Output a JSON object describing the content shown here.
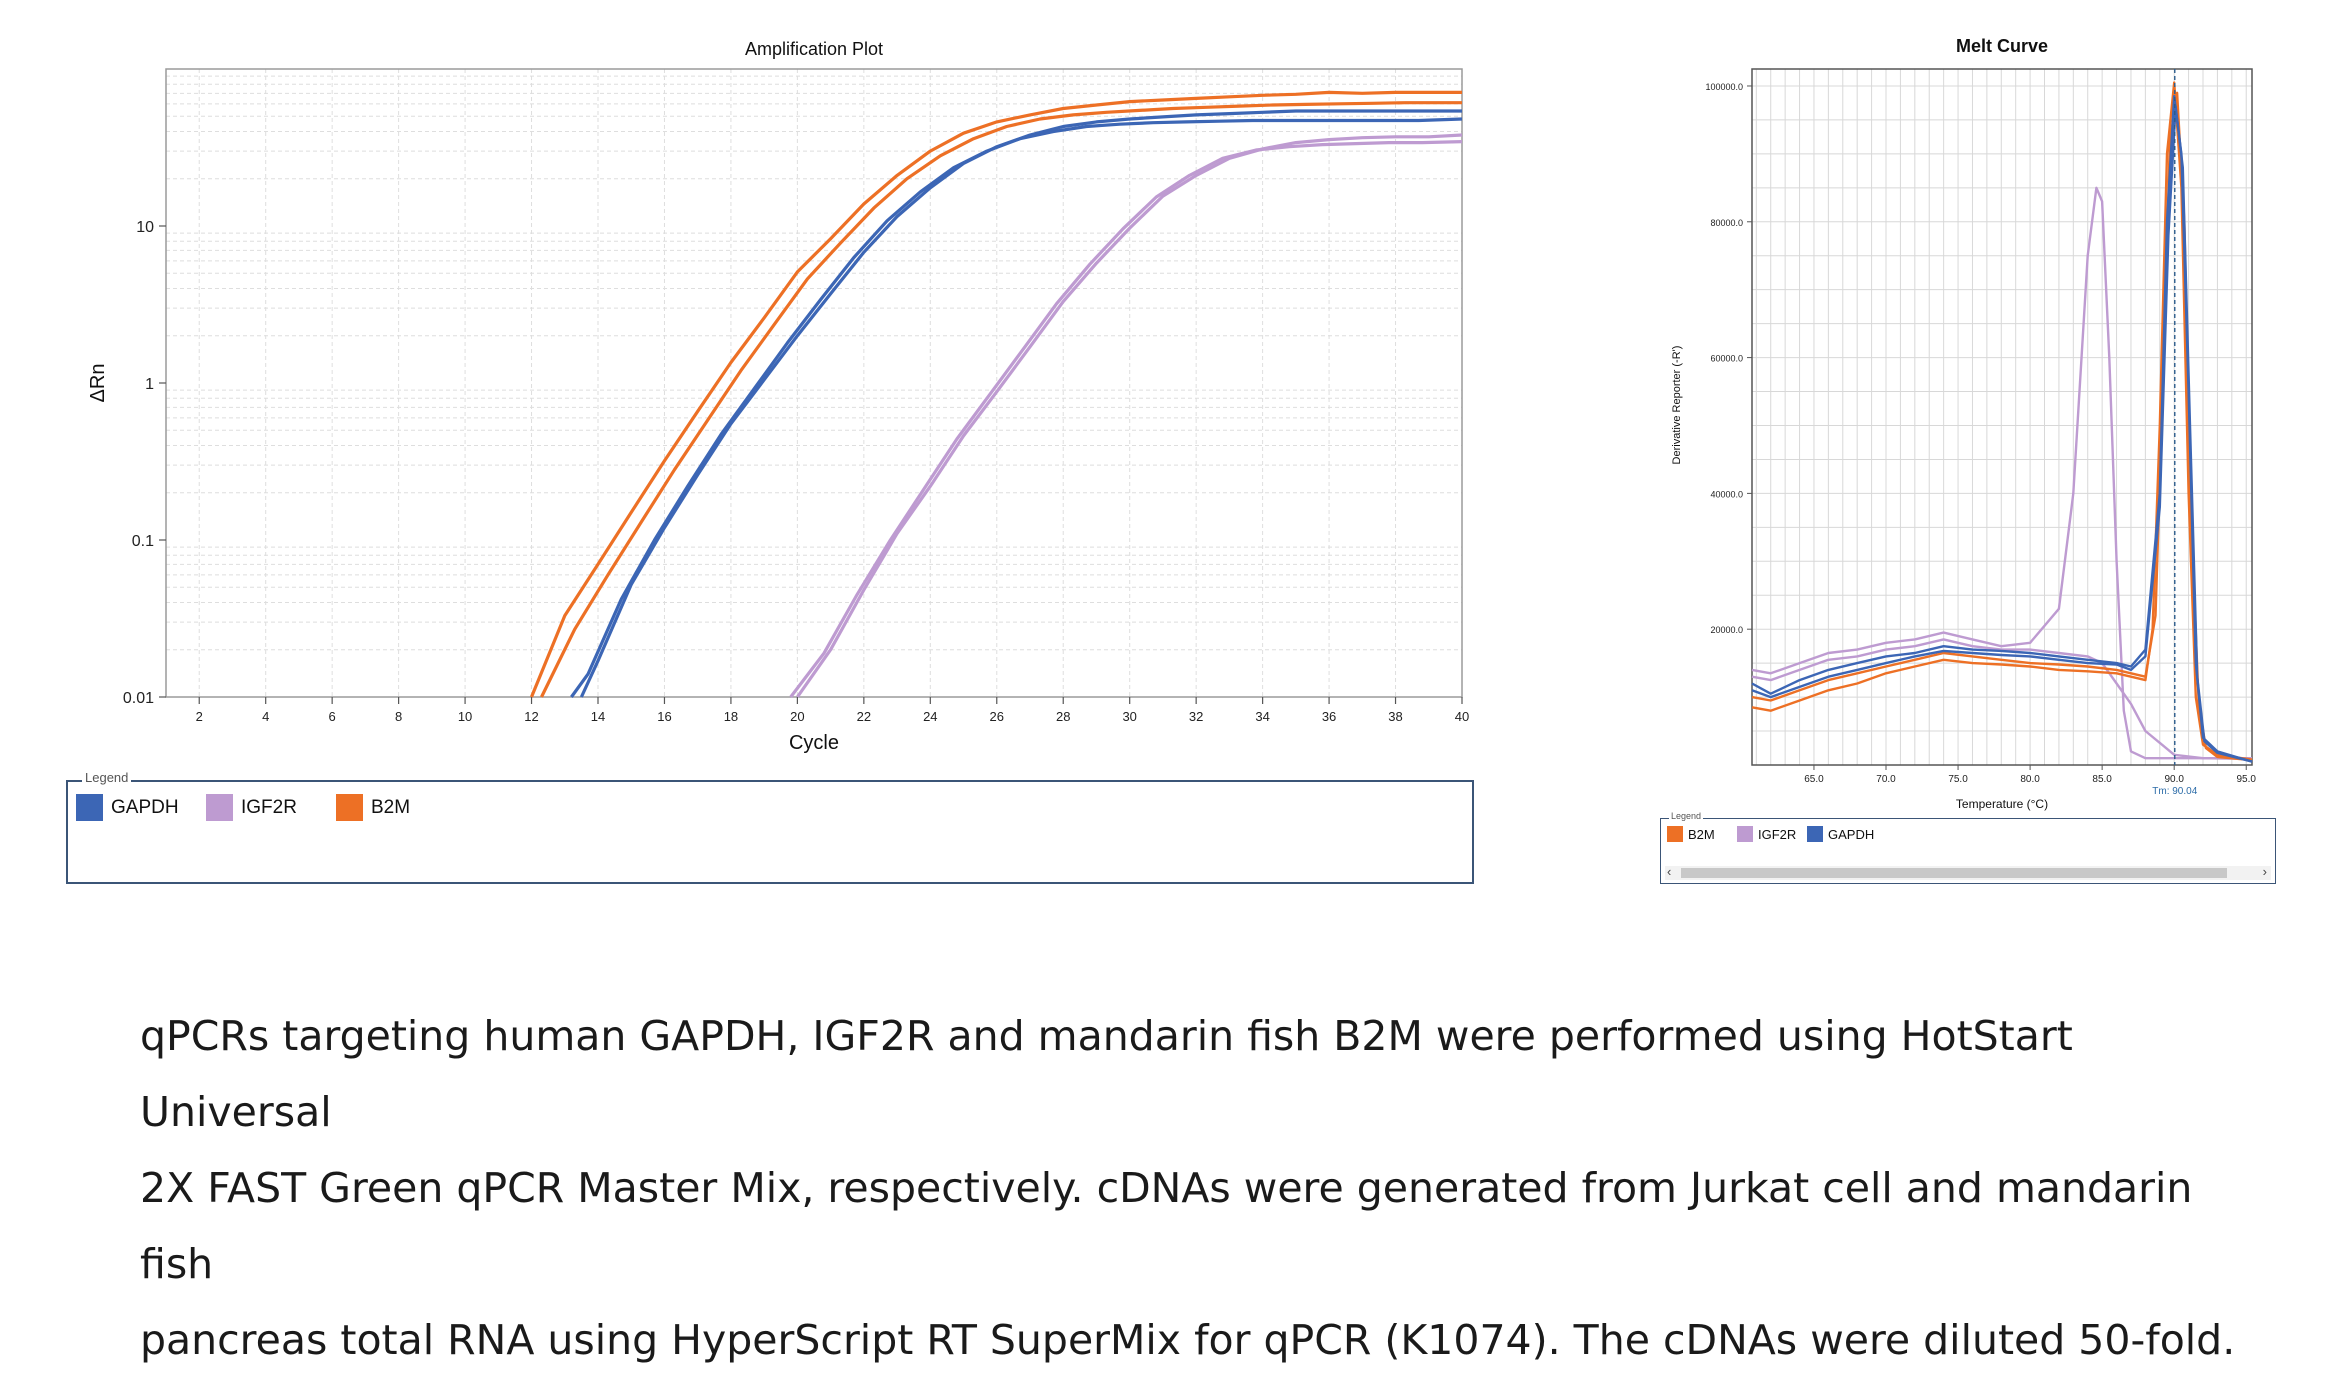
{
  "colors": {
    "gapdh": "#3c66b5",
    "igf2r": "#be9bd1",
    "b2m": "#ed7025"
  },
  "chart_data": [
    {
      "type": "line",
      "title": "Amplification Plot",
      "xlabel": "Cycle",
      "ylabel": "ΔRn",
      "xlim": [
        1,
        40
      ],
      "ylim": [
        0.01,
        100
      ],
      "yscale": "log",
      "grid": true,
      "x_ticks": [
        "2",
        "4",
        "6",
        "8",
        "10",
        "12",
        "14",
        "16",
        "18",
        "20",
        "22",
        "24",
        "26",
        "28",
        "30",
        "32",
        "34",
        "36",
        "38",
        "40"
      ],
      "y_ticks": [
        {
          "value": 0.01,
          "label": "0.01"
        },
        {
          "value": 0.1,
          "label": "0.1"
        },
        {
          "value": 1,
          "label": "1"
        },
        {
          "value": 10,
          "label": "10"
        }
      ],
      "legend_title": "Legend",
      "legend_position": "bottom",
      "legend": [
        {
          "label": "GAPDH",
          "color_key": "gapdh"
        },
        {
          "label": "IGF2R",
          "color_key": "igf2r"
        },
        {
          "label": "B2M",
          "color_key": "b2m"
        }
      ],
      "series": [
        {
          "color_key": "b2m",
          "x": [
            12,
            13,
            14,
            15,
            16,
            17,
            18,
            19,
            20,
            21,
            22,
            23,
            24,
            25,
            26,
            27,
            28,
            29,
            30,
            31,
            32,
            33,
            34,
            35,
            36,
            37,
            38,
            39,
            40
          ],
          "y": [
            0.01,
            0.033,
            0.07,
            0.15,
            0.32,
            0.66,
            1.35,
            2.6,
            5.1,
            8.3,
            13.8,
            21,
            30,
            39,
            46,
            51,
            56,
            59,
            62,
            63.5,
            65,
            66.5,
            68,
            69,
            71,
            70,
            71,
            71,
            71
          ]
        },
        {
          "color_key": "b2m",
          "x": [
            12.3,
            13.3,
            14.3,
            15.3,
            16.3,
            17.3,
            18.3,
            19.3,
            20.3,
            21.3,
            22.3,
            23.3,
            24.3,
            25.3,
            26.3,
            27.3,
            28.3,
            29.3,
            30.3,
            31.3,
            32.3,
            33.3,
            34.3,
            35.3,
            36.3,
            37.3,
            38.3,
            39.3,
            40
          ],
          "y": [
            0.01,
            0.027,
            0.06,
            0.13,
            0.28,
            0.58,
            1.2,
            2.35,
            4.6,
            7.8,
            13,
            20,
            28,
            36,
            43,
            48,
            51,
            53,
            54.5,
            56,
            57,
            58,
            59,
            59.5,
            60,
            60.5,
            61,
            61,
            61
          ]
        },
        {
          "color_key": "gapdh",
          "x": [
            13.5,
            14,
            15,
            16,
            17,
            18,
            19,
            20,
            21,
            22,
            23,
            24,
            25,
            26,
            27,
            28,
            29,
            30,
            31,
            32,
            33,
            34,
            35,
            36,
            37,
            38,
            39,
            40
          ],
          "y": [
            0.01,
            0.017,
            0.052,
            0.12,
            0.26,
            0.55,
            1.05,
            2.0,
            3.7,
            6.8,
            11.5,
            17.5,
            25,
            32,
            38,
            43,
            46,
            48,
            49.5,
            51,
            52,
            53,
            54,
            54,
            54,
            54,
            54,
            54
          ]
        },
        {
          "color_key": "gapdh",
          "x": [
            13.2,
            13.7,
            14.7,
            15.7,
            16.7,
            17.7,
            18.7,
            19.7,
            20.7,
            21.7,
            22.7,
            23.7,
            24.7,
            25.7,
            26.7,
            27.7,
            28.7,
            29.7,
            30.7,
            31.7,
            32.7,
            33.7,
            34.7,
            35.7,
            36.7,
            37.7,
            38.7,
            40
          ],
          "y": [
            0.01,
            0.014,
            0.042,
            0.1,
            0.22,
            0.47,
            0.92,
            1.8,
            3.4,
            6.3,
            10.8,
            16.5,
            23.5,
            30,
            36,
            40,
            43,
            44.5,
            45.5,
            46,
            46.5,
            47,
            47,
            47,
            47,
            47,
            47,
            48
          ]
        },
        {
          "color_key": "igf2r",
          "x": [
            20,
            21,
            22,
            23,
            24,
            25,
            26,
            27,
            28,
            29,
            30,
            31,
            32,
            33,
            34,
            35,
            36,
            37,
            38,
            39,
            40
          ],
          "y": [
            0.01,
            0.02,
            0.048,
            0.11,
            0.22,
            0.46,
            0.88,
            1.7,
            3.3,
            5.8,
            9.7,
            15.5,
            21,
            27,
            31,
            34,
            35.5,
            36.5,
            37,
            37,
            38
          ]
        },
        {
          "color_key": "igf2r",
          "x": [
            19.8,
            20.8,
            21.8,
            22.8,
            23.8,
            24.8,
            25.8,
            26.8,
            27.8,
            28.8,
            29.8,
            30.8,
            31.8,
            32.8,
            33.8,
            34.8,
            35.8,
            36.8,
            37.8,
            38.8,
            40
          ],
          "y": [
            0.01,
            0.019,
            0.045,
            0.1,
            0.21,
            0.44,
            0.85,
            1.65,
            3.2,
            5.7,
            9.6,
            15.3,
            21,
            27,
            30.5,
            32,
            33,
            33.5,
            34,
            34,
            34.5
          ]
        }
      ]
    },
    {
      "type": "line",
      "title": "Melt Curve",
      "xlabel": "Temperature (°C)",
      "ylabel": "Derivative Reporter (-R')",
      "xlim": [
        60.7,
        95.4
      ],
      "ylim": [
        0,
        102500
      ],
      "grid": true,
      "x_ticks": [
        "65.0",
        "70.0",
        "75.0",
        "80.0",
        "85.0",
        "90.0",
        "95.0"
      ],
      "y_ticks": [
        "20000.0",
        "40000.0",
        "60000.0",
        "80000.0",
        "100000.0"
      ],
      "annotation": "Tm: 90.04",
      "tm_value": 90.04,
      "legend_title": "Legend",
      "legend_position": "bottom",
      "legend": [
        {
          "label": "B2M",
          "color_key": "b2m"
        },
        {
          "label": "IGF2R",
          "color_key": "igf2r"
        },
        {
          "label": "GAPDH",
          "color_key": "gapdh"
        }
      ],
      "series": [
        {
          "color_key": "igf2r",
          "x": [
            60.7,
            62,
            64,
            66,
            68,
            70,
            72,
            74,
            76,
            78,
            80,
            82,
            83,
            84,
            84.6,
            85,
            85.5,
            86,
            86.5,
            87,
            88,
            90,
            92,
            95.4
          ],
          "y": [
            14000,
            13500,
            15000,
            16500,
            17000,
            18000,
            18500,
            19500,
            18500,
            17500,
            18000,
            23000,
            40000,
            75000,
            85000,
            83000,
            60000,
            30000,
            8000,
            2000,
            1000,
            1000,
            1000,
            1000
          ]
        },
        {
          "color_key": "igf2r",
          "x": [
            60.7,
            62,
            64,
            66,
            68,
            70,
            72,
            74,
            76,
            78,
            80,
            82,
            84,
            85,
            86,
            87,
            88,
            90,
            92,
            95.4
          ],
          "y": [
            13000,
            12500,
            14000,
            15500,
            16000,
            17000,
            17500,
            18500,
            17500,
            17000,
            17000,
            16500,
            16000,
            15000,
            12000,
            9000,
            5000,
            1500,
            1000,
            900
          ]
        },
        {
          "color_key": "b2m",
          "x": [
            60.7,
            62,
            64,
            66,
            68,
            70,
            72,
            74,
            76,
            78,
            80,
            82,
            84,
            86,
            87,
            88,
            88.5,
            89,
            89.5,
            90,
            90.5,
            91,
            91.5,
            92,
            93,
            95.4
          ],
          "y": [
            8500,
            8000,
            9500,
            11000,
            12000,
            13500,
            14500,
            15500,
            15000,
            14800,
            14500,
            14000,
            13800,
            13500,
            13000,
            12500,
            20000,
            50000,
            90000,
            100500,
            85000,
            40000,
            10000,
            3000,
            1500,
            800
          ]
        },
        {
          "color_key": "b2m",
          "x": [
            60.7,
            62,
            64,
            66,
            68,
            70,
            72,
            74,
            76,
            78,
            80,
            82,
            84,
            86,
            87,
            88,
            88.7,
            89.2,
            89.7,
            90.2,
            90.7,
            91.2,
            91.7,
            92.2,
            93,
            95.4
          ],
          "y": [
            10000,
            9500,
            11000,
            12500,
            13500,
            14500,
            15500,
            16500,
            16000,
            15500,
            15000,
            14800,
            14500,
            14000,
            13500,
            13000,
            22000,
            55000,
            92000,
            99000,
            80000,
            35000,
            9000,
            2500,
            1200,
            700
          ]
        },
        {
          "color_key": "gapdh",
          "x": [
            60.7,
            62,
            64,
            66,
            68,
            70,
            72,
            74,
            76,
            78,
            80,
            82,
            84,
            86,
            87,
            88,
            89,
            89.5,
            90,
            90.5,
            91,
            91.5,
            92,
            93,
            95.4
          ],
          "y": [
            12000,
            10500,
            12500,
            14000,
            15000,
            16000,
            16500,
            17500,
            17000,
            16800,
            16500,
            16000,
            15500,
            15000,
            14500,
            17000,
            40000,
            80000,
            98500,
            90000,
            55000,
            15000,
            4000,
            2000,
            500
          ]
        },
        {
          "color_key": "gapdh",
          "x": [
            60.7,
            62,
            64,
            66,
            68,
            70,
            72,
            74,
            76,
            78,
            80,
            82,
            84,
            86,
            87,
            88,
            89,
            89.6,
            90.1,
            90.6,
            91.1,
            91.6,
            92.1,
            93,
            95.4
          ],
          "y": [
            11000,
            10000,
            11500,
            13000,
            14000,
            15000,
            16000,
            16800,
            16500,
            16200,
            16000,
            15500,
            15000,
            14800,
            14000,
            16000,
            38000,
            78000,
            97000,
            88000,
            50000,
            13000,
            3500,
            1800,
            500
          ]
        }
      ]
    }
  ],
  "caption": [
    "qPCRs targeting human GAPDH, IGF2R and mandarin fish B2M were performed using HotStart Universal",
    "2X FAST Green qPCR Master Mix, respectively. cDNAs were generated from Jurkat cell and mandarin fish",
    "pancreas total RNA using HyperScript RT SuperMix for qPCR (K1074). The cDNAs were diluted 50-fold."
  ]
}
